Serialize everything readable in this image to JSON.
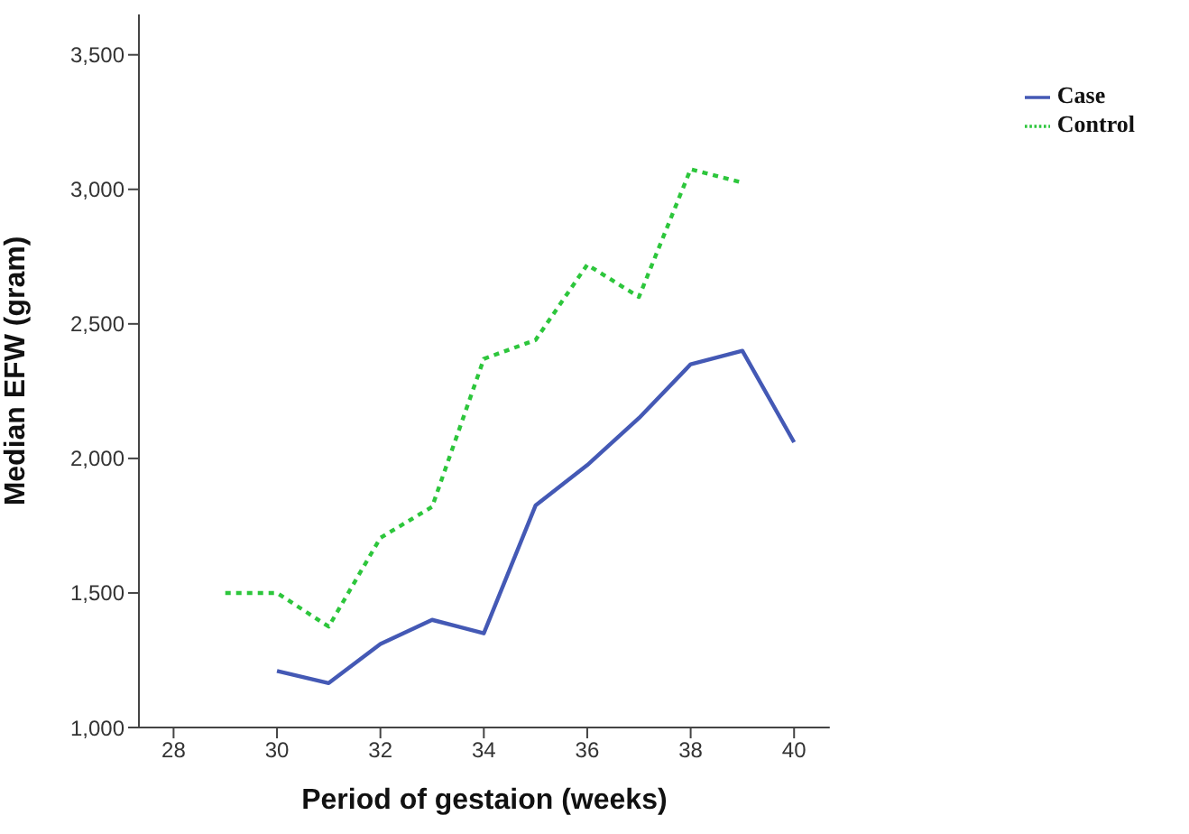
{
  "chart_data": {
    "type": "line",
    "xlabel": "Period of gestaion (weeks)",
    "ylabel": "Median EFW (gram)",
    "xlim": [
      27.33,
      40.69
    ],
    "xticks": [
      28,
      30,
      32,
      34,
      36,
      38,
      40
    ],
    "ylim": [
      1000,
      3650
    ],
    "yticks": [
      {
        "value": 1000,
        "label": "1,000"
      },
      {
        "value": 1500,
        "label": "1,500"
      },
      {
        "value": 2000,
        "label": "2,000"
      },
      {
        "value": 2500,
        "label": "2,500"
      },
      {
        "value": 3000,
        "label": "3,000"
      },
      {
        "value": 3500,
        "label": "3,500"
      }
    ],
    "grid": false,
    "legend": "top right",
    "marker": "none",
    "series": [
      {
        "name": "Case",
        "color": "#4459b5",
        "line_style": "solid",
        "x": [
          30,
          31,
          32,
          33,
          34,
          35,
          36,
          37,
          38,
          39,
          40
        ],
        "values": [
          1210,
          1165,
          1310,
          1400,
          1350,
          1825,
          1975,
          2150,
          2350,
          2400,
          2060
        ]
      },
      {
        "name": "Control",
        "color": "#2dc63c",
        "line_style": "dotted",
        "x": [
          29,
          30,
          31,
          32,
          33,
          34,
          35,
          36,
          37,
          38,
          39
        ],
        "values": [
          1500,
          1500,
          1375,
          1705,
          1820,
          2370,
          2440,
          2720,
          2600,
          3075,
          3025
        ]
      }
    ]
  }
}
